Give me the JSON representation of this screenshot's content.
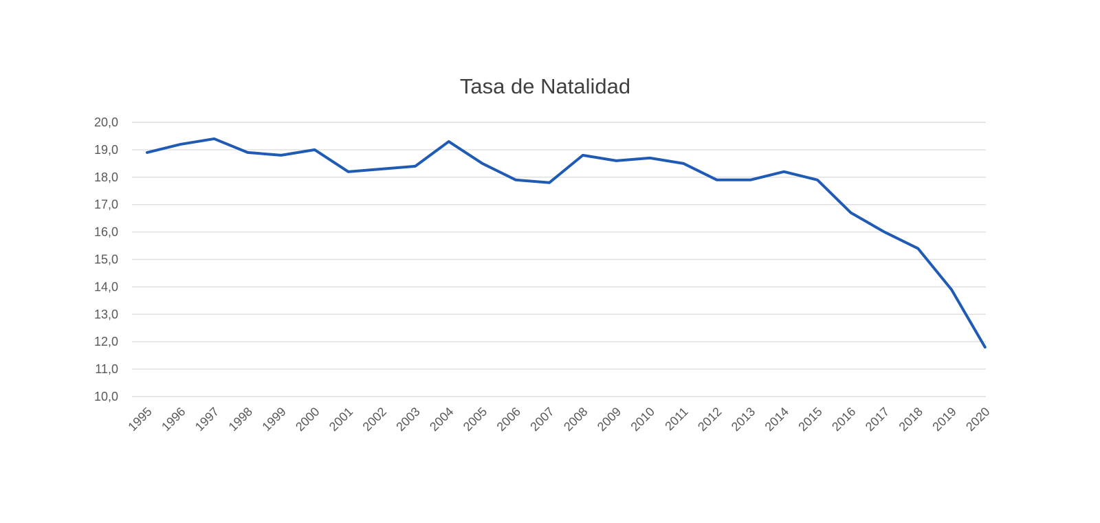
{
  "chart_data": {
    "type": "line",
    "title": "Tasa de Natalidad",
    "xlabel": "",
    "ylabel": "",
    "ylim": [
      10,
      20
    ],
    "y_ticks": [
      "20,0",
      "19,0",
      "18,0",
      "17,0",
      "16,0",
      "15,0",
      "14,0",
      "13,0",
      "12,0",
      "11,0",
      "10,0"
    ],
    "y_tick_values": [
      20,
      19,
      18,
      17,
      16,
      15,
      14,
      13,
      12,
      11,
      10
    ],
    "x": [
      "1995",
      "1996",
      "1997",
      "1998",
      "1999",
      "2000",
      "2001",
      "2002",
      "2003",
      "2004",
      "2005",
      "2006",
      "2007",
      "2008",
      "2009",
      "2010",
      "2011",
      "2012",
      "2013",
      "2014",
      "2015",
      "2016",
      "2017",
      "2018",
      "2019",
      "2020"
    ],
    "series": [
      {
        "values": [
          18.9,
          19.2,
          19.4,
          18.9,
          18.8,
          19.0,
          18.2,
          18.3,
          18.4,
          19.3,
          18.5,
          17.9,
          17.8,
          18.8,
          18.6,
          18.7,
          18.5,
          17.9,
          17.9,
          18.2,
          17.9,
          16.7,
          16.0,
          15.4,
          13.9,
          11.8
        ],
        "color": "#1f5bb5"
      }
    ],
    "grid": true,
    "legend": "none"
  }
}
